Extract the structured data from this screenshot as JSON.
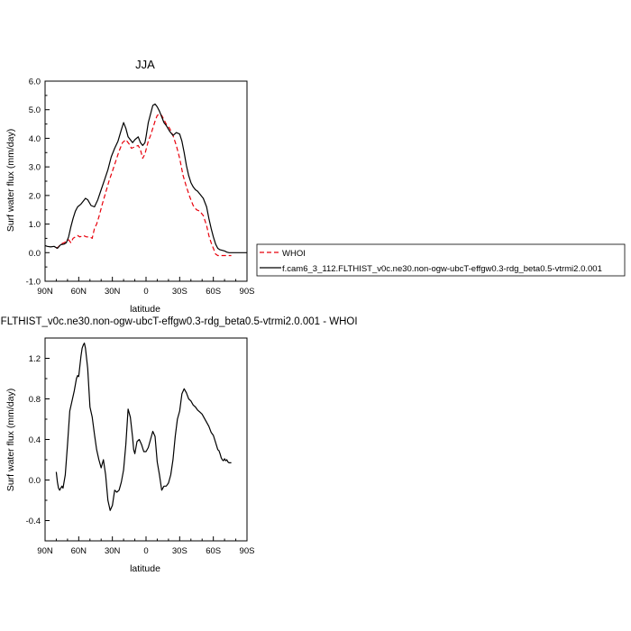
{
  "chart_data": [
    {
      "type": "line",
      "title": "JJA",
      "xlabel": "latitude",
      "ylabel": "Surf water flux (mm/day)",
      "xlim": [
        90,
        -90
      ],
      "ylim": [
        -1.0,
        6.0
      ],
      "x_ticks": [
        90,
        60,
        30,
        0,
        -30,
        -60,
        -90
      ],
      "x_tick_labels": [
        "90N",
        "60N",
        "30N",
        "0",
        "30S",
        "60S",
        "90S"
      ],
      "y_ticks": [
        -1.0,
        0.0,
        1.0,
        2.0,
        3.0,
        4.0,
        5.0,
        6.0
      ],
      "y_tick_labels": [
        "-1.0",
        "0.0",
        "1.0",
        "2.0",
        "3.0",
        "4.0",
        "5.0",
        "6.0"
      ],
      "grid": false,
      "legend_position": "right",
      "series": [
        {
          "name": "WHOI",
          "color": "#e8000b",
          "dash": "dashed",
          "x": [
            80,
            78,
            76,
            73,
            71,
            69,
            67,
            65,
            63,
            61,
            59,
            56,
            53,
            50,
            48,
            46,
            44,
            42,
            39,
            36,
            33,
            30,
            27,
            24,
            21,
            18,
            15,
            13,
            10,
            7,
            5,
            3,
            1,
            0,
            -2,
            -4,
            -6,
            -8,
            -10,
            -12,
            -14,
            -16,
            -18,
            -21,
            -24,
            -27,
            -30,
            -33,
            -36,
            -39,
            -42,
            -45,
            -48,
            -51,
            -54,
            -56,
            -58,
            -60,
            -62,
            -64,
            -66,
            -68,
            -70,
            -72,
            -74,
            -76
          ],
          "y": [
            0.15,
            0.2,
            0.3,
            0.35,
            0.4,
            0.45,
            0.35,
            0.5,
            0.55,
            0.6,
            0.55,
            0.6,
            0.55,
            0.55,
            0.5,
            0.85,
            1.0,
            1.25,
            1.7,
            2.1,
            2.5,
            2.85,
            3.2,
            3.55,
            3.85,
            3.95,
            3.8,
            3.65,
            3.7,
            3.75,
            3.6,
            3.3,
            3.45,
            3.6,
            3.9,
            4.1,
            4.35,
            4.6,
            4.8,
            4.85,
            4.8,
            4.65,
            4.5,
            4.35,
            4.1,
            3.75,
            3.3,
            2.7,
            2.3,
            1.95,
            1.65,
            1.5,
            1.45,
            1.3,
            0.95,
            0.6,
            0.35,
            0.15,
            -0.05,
            -0.1,
            -0.1,
            -0.1,
            -0.1,
            -0.1,
            -0.1,
            -0.1
          ]
        },
        {
          "name": "f.cam6_3_112.FLTHIST_v0c.ne30.non-ogw-ubcT-effgw0.3-rdg_beta0.5-vtrmi2.0.001",
          "color": "#000000",
          "dash": "solid",
          "x": [
            90,
            88,
            85,
            82,
            79,
            76,
            73,
            71,
            69,
            67,
            65,
            63,
            61,
            58,
            56,
            54,
            52,
            49,
            46,
            43,
            40,
            37,
            34,
            31,
            28,
            25,
            22,
            20,
            18,
            16,
            14,
            12,
            10,
            7,
            5,
            3,
            1,
            0,
            -2,
            -4,
            -6,
            -8,
            -10,
            -12,
            -14,
            -16,
            -18,
            -21,
            -24,
            -27,
            -30,
            -32,
            -34,
            -36,
            -38,
            -40,
            -42,
            -44,
            -46,
            -48,
            -51,
            -54,
            -56,
            -58,
            -60,
            -62,
            -64,
            -66,
            -68,
            -70,
            -72,
            -74,
            -77,
            -80,
            -83,
            -86,
            -90
          ],
          "y": [
            0.25,
            0.22,
            0.2,
            0.22,
            0.15,
            0.28,
            0.3,
            0.35,
            0.55,
            0.9,
            1.2,
            1.45,
            1.6,
            1.7,
            1.8,
            1.9,
            1.85,
            1.65,
            1.6,
            1.85,
            2.2,
            2.55,
            2.9,
            3.35,
            3.65,
            3.9,
            4.3,
            4.55,
            4.35,
            4.05,
            3.95,
            3.85,
            3.95,
            4.05,
            3.85,
            3.75,
            3.85,
            4.05,
            4.55,
            4.85,
            5.15,
            5.2,
            5.1,
            4.95,
            4.75,
            4.55,
            4.45,
            4.25,
            4.1,
            4.2,
            4.15,
            3.9,
            3.5,
            3.05,
            2.7,
            2.45,
            2.3,
            2.2,
            2.15,
            2.05,
            1.9,
            1.6,
            1.2,
            0.85,
            0.55,
            0.3,
            0.15,
            0.1,
            0.08,
            0.06,
            0.02,
            0.0,
            0.0,
            0.0,
            0.0,
            0.0,
            0.0
          ]
        }
      ]
    },
    {
      "type": "line",
      "title": "f.cam6_3_112.FLTHIST_v0c.ne30.non-ogw-ubcT-effgw0.3-rdg_beta0.5-vtrmi2.0.001 - WHOI",
      "xlabel": "latitude",
      "ylabel": "Surf water flux (mm/day)",
      "xlim": [
        90,
        -90
      ],
      "ylim": [
        -0.6,
        1.4
      ],
      "x_ticks": [
        90,
        60,
        30,
        0,
        -30,
        -60,
        -90
      ],
      "x_tick_labels": [
        "90N",
        "60N",
        "30N",
        "0",
        "30S",
        "60S",
        "90S"
      ],
      "y_ticks": [
        -0.4,
        0.0,
        0.4,
        0.8,
        1.2
      ],
      "y_tick_labels": [
        "-0.4",
        "0.0",
        "0.4",
        "0.8",
        "1.2"
      ],
      "grid": false,
      "series": [
        {
          "color": "#000000",
          "dash": "solid",
          "x": [
            80,
            79,
            78,
            77,
            76,
            75,
            74,
            72,
            70,
            68,
            66,
            64,
            62,
            61,
            60,
            58,
            57,
            56,
            55,
            54,
            52,
            50,
            48,
            46,
            44,
            42,
            40,
            38,
            36,
            34,
            32,
            30,
            28,
            26,
            24,
            22,
            20,
            18,
            16,
            14,
            12,
            11,
            10,
            8,
            6,
            4,
            2,
            0,
            -2,
            -4,
            -6,
            -8,
            -10,
            -12,
            -14,
            -16,
            -18,
            -20,
            -22,
            -24,
            -26,
            -28,
            -30,
            -32,
            -34,
            -36,
            -38,
            -40,
            -42,
            -44,
            -46,
            -48,
            -50,
            -52,
            -54,
            -56,
            -58,
            -60,
            -62,
            -64,
            -65,
            -66,
            -67,
            -68,
            -69,
            -70,
            -71,
            -72,
            -73,
            -74,
            -75,
            -76
          ],
          "y": [
            0.08,
            -0.02,
            -0.08,
            -0.1,
            -0.08,
            -0.06,
            -0.08,
            0.05,
            0.35,
            0.68,
            0.78,
            0.88,
            1.0,
            1.03,
            1.02,
            1.22,
            1.3,
            1.33,
            1.35,
            1.3,
            1.1,
            0.72,
            0.62,
            0.45,
            0.3,
            0.2,
            0.12,
            0.2,
            0.05,
            -0.2,
            -0.3,
            -0.25,
            -0.1,
            -0.12,
            -0.1,
            -0.02,
            0.1,
            0.35,
            0.7,
            0.62,
            0.42,
            0.3,
            0.26,
            0.38,
            0.4,
            0.35,
            0.28,
            0.28,
            0.32,
            0.4,
            0.48,
            0.43,
            0.18,
            0.05,
            -0.1,
            -0.06,
            -0.06,
            -0.03,
            0.05,
            0.2,
            0.43,
            0.6,
            0.68,
            0.85,
            0.9,
            0.86,
            0.8,
            0.78,
            0.74,
            0.72,
            0.69,
            0.67,
            0.65,
            0.61,
            0.57,
            0.53,
            0.47,
            0.44,
            0.37,
            0.3,
            0.29,
            0.26,
            0.22,
            0.2,
            0.19,
            0.21,
            0.19,
            0.2,
            0.18,
            0.17,
            0.17,
            0.17
          ]
        }
      ]
    }
  ]
}
